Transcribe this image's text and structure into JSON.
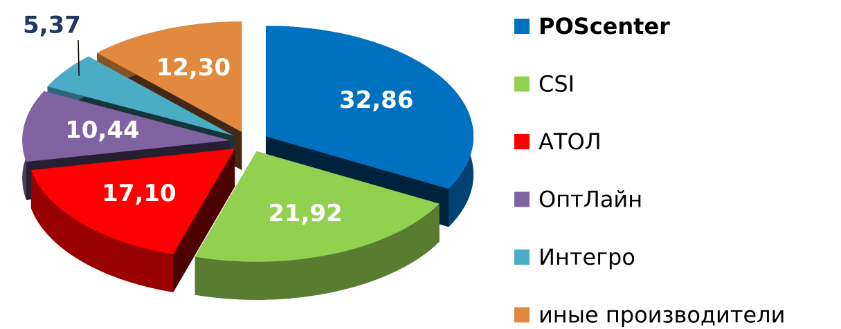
{
  "chart_data": {
    "type": "pie",
    "categories": [
      "POScenter",
      "CSI",
      "АТОЛ",
      "ОптЛайн",
      "Интегро",
      "иные производители"
    ],
    "values": [
      32.86,
      21.92,
      17.1,
      10.44,
      5.37,
      12.3
    ],
    "value_labels": [
      "32,86",
      "21,92",
      "17,10",
      "10,44",
      "5,37",
      "12,30"
    ],
    "colors": [
      "#0070c0",
      "#92d050",
      "#ff0000",
      "#8064a2",
      "#4bacc6",
      "#e0893f"
    ]
  }
}
